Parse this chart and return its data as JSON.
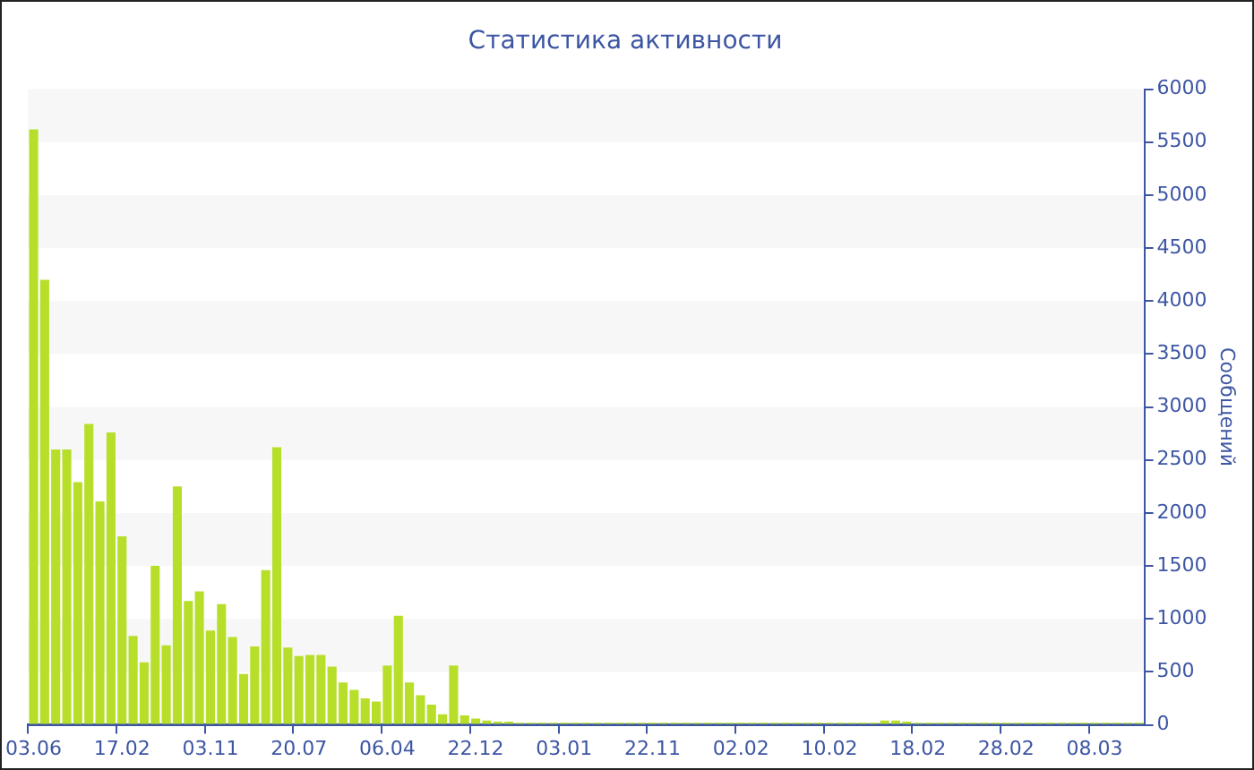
{
  "chart_data": {
    "type": "bar",
    "title": "Статистика активности",
    "ylabel": "Сообщений",
    "categories": [
      "03.06",
      null,
      null,
      null,
      null,
      null,
      null,
      null,
      "17.02",
      null,
      null,
      null,
      null,
      null,
      null,
      null,
      "03.11",
      null,
      null,
      null,
      null,
      null,
      null,
      null,
      "20.07",
      null,
      null,
      null,
      null,
      null,
      null,
      null,
      "06.04",
      null,
      null,
      null,
      null,
      null,
      null,
      null,
      "22.12",
      null,
      null,
      null,
      null,
      null,
      null,
      null,
      "03.01",
      null,
      null,
      null,
      null,
      null,
      null,
      null,
      "22.11",
      null,
      null,
      null,
      null,
      null,
      null,
      null,
      "02.02",
      null,
      null,
      null,
      null,
      null,
      null,
      null,
      "10.02",
      null,
      null,
      null,
      null,
      null,
      null,
      null,
      "18.02",
      null,
      null,
      null,
      null,
      null,
      null,
      null,
      "28.02",
      null,
      null,
      null,
      null,
      null,
      null,
      null,
      "08.03",
      null,
      null,
      null,
      null
    ],
    "values": [
      5620,
      4200,
      2600,
      2600,
      2290,
      2840,
      2110,
      2760,
      1780,
      840,
      590,
      1500,
      750,
      2250,
      1170,
      1260,
      890,
      1140,
      830,
      480,
      740,
      1460,
      2620,
      730,
      650,
      660,
      660,
      550,
      400,
      330,
      250,
      220,
      560,
      1030,
      400,
      280,
      190,
      100,
      560,
      90,
      60,
      40,
      30,
      30,
      20,
      20,
      20,
      20,
      20,
      20,
      20,
      20,
      20,
      20,
      20,
      20,
      20,
      20,
      20,
      20,
      20,
      20,
      20,
      20,
      20,
      20,
      20,
      20,
      20,
      20,
      20,
      20,
      20,
      20,
      20,
      20,
      20,
      40,
      40,
      30,
      20,
      20,
      20,
      20,
      20,
      20,
      20,
      20,
      20,
      20,
      20,
      20,
      20,
      20,
      20,
      20,
      20,
      20,
      20,
      20,
      20
    ],
    "color": "#b7df2a",
    "ylim": [
      0,
      6000
    ],
    "yticks": [
      0,
      500,
      1000,
      1500,
      2000,
      2500,
      3000,
      3500,
      4000,
      4500,
      5000,
      5500,
      6000
    ],
    "bands": [
      {
        "axis": "y",
        "from": 500,
        "to": 1000,
        "color": "#f7f7f7"
      },
      {
        "axis": "y",
        "from": 1500,
        "to": 2000,
        "color": "#f7f7f7"
      },
      {
        "axis": "y",
        "from": 2500,
        "to": 3000,
        "color": "#f7f7f7"
      },
      {
        "axis": "y",
        "from": 3500,
        "to": 4000,
        "color": "#f7f7f7"
      },
      {
        "axis": "y",
        "from": 4500,
        "to": 5000,
        "color": "#f7f7f7"
      },
      {
        "axis": "y",
        "from": 5500,
        "to": 6000,
        "color": "#f7f7f7"
      }
    ],
    "legend": false
  }
}
